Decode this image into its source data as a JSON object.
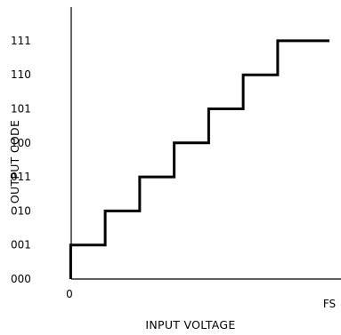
{
  "chart_data": {
    "type": "line",
    "step": true,
    "title": "",
    "xlabel": "INPUT VOLTAGE",
    "ylabel": "OUTPUT CODE",
    "x_ticks": [
      {
        "value": 0,
        "label": "0"
      },
      {
        "value": 8,
        "label": "FS"
      }
    ],
    "y_categories": [
      "000",
      "001",
      "010",
      "011",
      "100",
      "101",
      "110",
      "111"
    ],
    "xlim": [
      0,
      8
    ],
    "transitions": [
      0.5,
      1.5,
      2.5,
      3.5,
      4.5,
      5.5,
      6.5
    ],
    "x_end": 8,
    "grid": false,
    "series": [
      {
        "x": [
          0.5,
          1.5,
          2.5,
          3.5,
          4.5,
          5.5,
          6.5,
          7.5
        ],
        "codes": [
          "001",
          "010",
          "011",
          "100",
          "101",
          "110",
          "111",
          "111"
        ]
      }
    ]
  }
}
